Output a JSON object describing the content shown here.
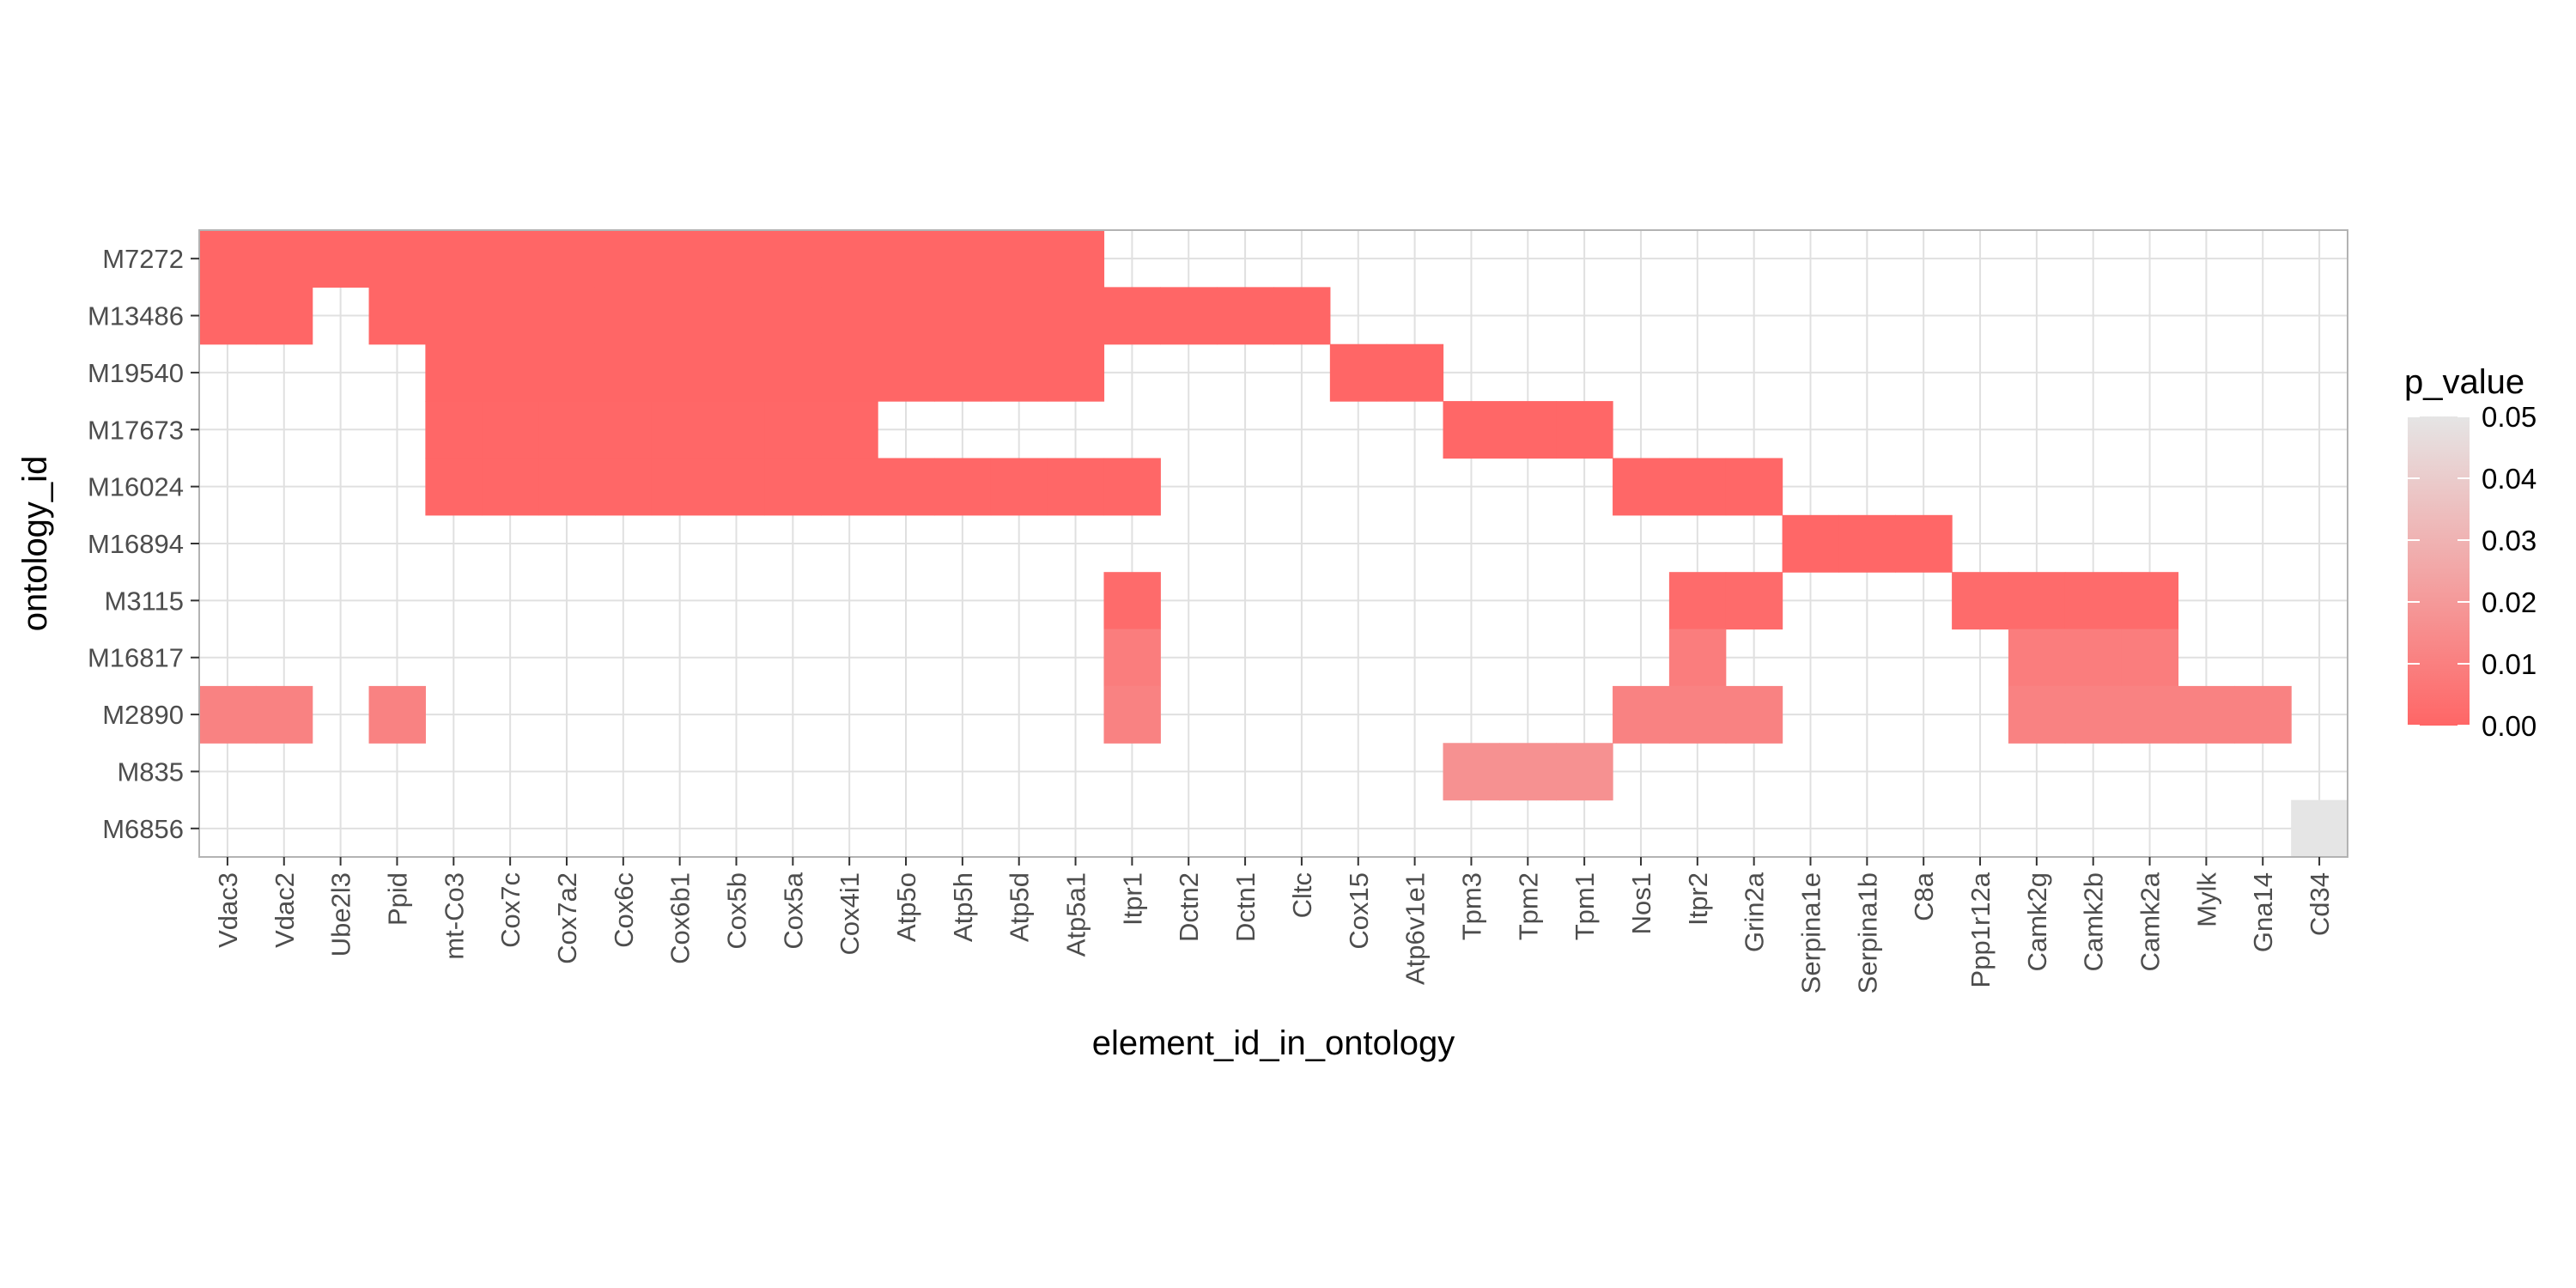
{
  "chart_data": {
    "type": "heatmap",
    "xlabel": "element_id_in_ontology",
    "ylabel": "ontology_id",
    "x_categories": [
      "Vdac3",
      "Vdac2",
      "Ube2l3",
      "Ppid",
      "mt-Co3",
      "Cox7c",
      "Cox7a2",
      "Cox6c",
      "Cox6b1",
      "Cox5b",
      "Cox5a",
      "Cox4i1",
      "Atp5o",
      "Atp5h",
      "Atp5d",
      "Atp5a1",
      "Itpr1",
      "Dctn2",
      "Dctn1",
      "Cltc",
      "Cox15",
      "Atp6v1e1",
      "Tpm3",
      "Tpm2",
      "Tpm1",
      "Nos1",
      "Itpr2",
      "Grin2a",
      "Serpina1e",
      "Serpina1b",
      "C8a",
      "Ppp1r12a",
      "Camk2g",
      "Camk2b",
      "Camk2a",
      "Mylk",
      "Gna14",
      "Cd34"
    ],
    "y_categories": [
      "M7272",
      "M13486",
      "M19540",
      "M17673",
      "M16024",
      "M16894",
      "M3115",
      "M16817",
      "M2890",
      "M835",
      "M6856"
    ],
    "cells": [
      {
        "ontology": "M7272",
        "p_value": 0.0001,
        "elements": [
          "Vdac3",
          "Vdac2",
          "Ube2l3",
          "Ppid",
          "mt-Co3",
          "Cox7c",
          "Cox7a2",
          "Cox6c",
          "Cox6b1",
          "Cox5b",
          "Cox5a",
          "Cox4i1",
          "Atp5o",
          "Atp5h",
          "Atp5d",
          "Atp5a1"
        ]
      },
      {
        "ontology": "M13486",
        "p_value": 0.0001,
        "elements": [
          "Vdac3",
          "Vdac2",
          "Ppid",
          "mt-Co3",
          "Cox7c",
          "Cox7a2",
          "Cox6c",
          "Cox6b1",
          "Cox5b",
          "Cox5a",
          "Cox4i1",
          "Atp5o",
          "Atp5h",
          "Atp5d",
          "Atp5a1",
          "Itpr1",
          "Dctn2",
          "Dctn1",
          "Cltc"
        ]
      },
      {
        "ontology": "M19540",
        "p_value": 0.0001,
        "elements": [
          "mt-Co3",
          "Cox7c",
          "Cox7a2",
          "Cox6c",
          "Cox6b1",
          "Cox5b",
          "Cox5a",
          "Cox4i1",
          "Atp5o",
          "Atp5h",
          "Atp5d",
          "Atp5a1",
          "Cox15",
          "Atp6v1e1"
        ]
      },
      {
        "ontology": "M17673",
        "p_value": 0.0003,
        "elements": [
          "mt-Co3",
          "Cox7c",
          "Cox7a2",
          "Cox6c",
          "Cox6b1",
          "Cox5b",
          "Cox5a",
          "Cox4i1",
          "Tpm3",
          "Tpm2",
          "Tpm1"
        ]
      },
      {
        "ontology": "M16024",
        "p_value": 0.0005,
        "elements": [
          "mt-Co3",
          "Cox7c",
          "Cox7a2",
          "Cox6c",
          "Cox6b1",
          "Cox5b",
          "Cox5a",
          "Cox4i1",
          "Atp5o",
          "Atp5h",
          "Atp5d",
          "Atp5a1",
          "Itpr1",
          "Nos1",
          "Itpr2",
          "Grin2a"
        ]
      },
      {
        "ontology": "M16894",
        "p_value": 0.0005,
        "elements": [
          "Serpina1e",
          "Serpina1b",
          "C8a"
        ]
      },
      {
        "ontology": "M3115",
        "p_value": 0.002,
        "elements": [
          "Itpr1",
          "Itpr2",
          "Grin2a",
          "Ppp1r12a",
          "Camk2g",
          "Camk2b",
          "Camk2a"
        ]
      },
      {
        "ontology": "M16817",
        "p_value": 0.009,
        "elements": [
          "Itpr1",
          "Itpr2",
          "Camk2g",
          "Camk2b",
          "Camk2a"
        ]
      },
      {
        "ontology": "M2890",
        "p_value": 0.011,
        "elements": [
          "Vdac3",
          "Vdac2",
          "Ppid",
          "Itpr1",
          "Nos1",
          "Itpr2",
          "Grin2a",
          "Camk2g",
          "Camk2b",
          "Camk2a",
          "Mylk",
          "Gna14"
        ]
      },
      {
        "ontology": "M835",
        "p_value": 0.017,
        "elements": [
          "Tpm3",
          "Tpm2",
          "Tpm1"
        ]
      },
      {
        "ontology": "M6856",
        "p_value": 0.05,
        "elements": [
          "Cd34"
        ]
      }
    ],
    "legend": {
      "title": "p_value",
      "placement": "right",
      "ticks": [
        "0.00",
        "0.01",
        "0.02",
        "0.03",
        "0.04",
        "0.05"
      ],
      "range": [
        0,
        0.05
      ],
      "color_low": "#FF6666",
      "color_high": "#E5E5E5"
    },
    "colors": {
      "panel_border": "#B3B3B3",
      "grid": "#E0E0E0",
      "background": "#FFFFFF"
    },
    "grid": true
  }
}
